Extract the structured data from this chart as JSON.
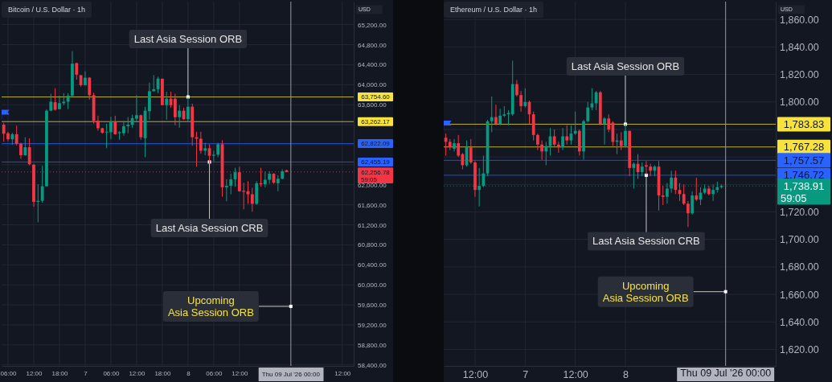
{
  "chart_data": [
    {
      "type": "candlestick",
      "title": "Bitcoin / U.S. Dollar · 1h",
      "subtitle": "USD",
      "grid": true,
      "x": [
        "2026-07-06T05:00",
        "2026-07-06T06:00",
        "2026-07-06T07:00",
        "2026-07-06T08:00",
        "2026-07-06T09:00",
        "2026-07-06T10:00",
        "2026-07-06T11:00",
        "2026-07-06T12:00",
        "2026-07-06T13:00",
        "2026-07-06T14:00",
        "2026-07-06T15:00",
        "2026-07-06T16:00",
        "2026-07-06T17:00",
        "2026-07-06T18:00",
        "2026-07-06T19:00",
        "2026-07-06T20:00",
        "2026-07-06T21:00",
        "2026-07-06T22:00",
        "2026-07-06T23:00",
        "2026-07-07T00:00",
        "2026-07-07T01:00",
        "2026-07-07T02:00",
        "2026-07-07T03:00",
        "2026-07-07T04:00",
        "2026-07-07T05:00",
        "2026-07-07T06:00",
        "2026-07-07T07:00",
        "2026-07-07T08:00",
        "2026-07-07T09:00",
        "2026-07-07T10:00",
        "2026-07-07T11:00",
        "2026-07-07T12:00",
        "2026-07-07T13:00",
        "2026-07-07T14:00",
        "2026-07-07T15:00",
        "2026-07-07T16:00",
        "2026-07-07T17:00",
        "2026-07-07T18:00",
        "2026-07-07T19:00",
        "2026-07-07T20:00",
        "2026-07-07T21:00",
        "2026-07-07T22:00",
        "2026-07-07T23:00",
        "2026-07-08T00:00",
        "2026-07-08T01:00",
        "2026-07-08T02:00",
        "2026-07-08T03:00",
        "2026-07-08T04:00",
        "2026-07-08T05:00",
        "2026-07-08T06:00",
        "2026-07-08T07:00",
        "2026-07-08T08:00",
        "2026-07-08T09:00",
        "2026-07-08T10:00",
        "2026-07-08T11:00",
        "2026-07-08T12:00",
        "2026-07-08T13:00",
        "2026-07-08T14:00",
        "2026-07-08T15:00",
        "2026-07-08T16:00",
        "2026-07-08T17:00",
        "2026-07-08T18:00",
        "2026-07-08T19:00",
        "2026-07-08T20:00",
        "2026-07-08T21:00",
        "2026-07-08T22:00",
        "2026-07-08T23:00"
      ],
      "ohlc": [
        [
          63200,
          63240,
          62860,
          63020
        ],
        [
          63030,
          63060,
          62870,
          62910
        ],
        [
          62910,
          63040,
          62800,
          63010
        ],
        [
          63010,
          63180,
          62790,
          62820
        ],
        [
          62820,
          62840,
          62520,
          62590
        ],
        [
          62590,
          62950,
          62580,
          62750
        ],
        [
          62750,
          62930,
          62390,
          62410
        ],
        [
          62400,
          62420,
          61560,
          61660
        ],
        [
          61660,
          62010,
          61250,
          61680
        ],
        [
          61680,
          62380,
          61640,
          61970
        ],
        [
          61970,
          63510,
          61960,
          63480
        ],
        [
          63480,
          63820,
          63470,
          63660
        ],
        [
          63650,
          63930,
          63480,
          63500
        ],
        [
          63510,
          63780,
          63510,
          63630
        ],
        [
          63630,
          63830,
          63590,
          63660
        ],
        [
          63660,
          63830,
          63510,
          63780
        ],
        [
          63780,
          64670,
          63770,
          64420
        ],
        [
          64430,
          64440,
          64100,
          64200
        ],
        [
          64190,
          64190,
          63960,
          63990
        ],
        [
          63990,
          64270,
          63980,
          64140
        ],
        [
          64140,
          64150,
          63700,
          63790
        ],
        [
          63790,
          63840,
          63220,
          63280
        ],
        [
          63280,
          63380,
          63080,
          63130
        ],
        [
          63130,
          63140,
          63020,
          63040
        ],
        [
          63050,
          63220,
          62730,
          63060
        ],
        [
          63050,
          63360,
          62910,
          63260
        ],
        [
          63260,
          63380,
          63000,
          63010
        ],
        [
          63030,
          63070,
          62900,
          63050
        ],
        [
          63030,
          63270,
          62980,
          63170
        ],
        [
          63170,
          63350,
          63030,
          63200
        ],
        [
          63200,
          63400,
          63140,
          63330
        ],
        [
          63320,
          63790,
          63270,
          63390
        ],
        [
          63390,
          63400,
          62900,
          62950
        ],
        [
          62930,
          63560,
          62550,
          63480
        ],
        [
          63470,
          64040,
          63300,
          63870
        ],
        [
          63870,
          64190,
          63860,
          63910
        ],
        [
          63910,
          64160,
          63830,
          64120
        ],
        [
          64120,
          64120,
          63590,
          63590
        ],
        [
          63590,
          63860,
          63300,
          63720
        ],
        [
          63720,
          63860,
          63540,
          63590
        ],
        [
          63720,
          63820,
          63190,
          63350
        ],
        [
          63350,
          63590,
          63140,
          63480
        ],
        [
          63480,
          63540,
          63300,
          63310
        ],
        [
          63310,
          63750,
          63250,
          63560
        ],
        [
          63560,
          63620,
          62780,
          62950
        ],
        [
          62950,
          63060,
          62360,
          62920
        ],
        [
          62920,
          63060,
          62620,
          62680
        ],
        [
          62680,
          62840,
          62590,
          62730
        ],
        [
          62730,
          62810,
          62420,
          62580
        ],
        [
          62580,
          62680,
          62470,
          62600
        ],
        [
          62600,
          62840,
          62550,
          62810
        ],
        [
          62810,
          62890,
          61760,
          61950
        ],
        [
          61950,
          62110,
          61670,
          61980
        ],
        [
          61980,
          62220,
          61810,
          62110
        ],
        [
          62110,
          62340,
          61960,
          62250
        ],
        [
          62250,
          62360,
          61860,
          61870
        ],
        [
          61880,
          62040,
          61510,
          61860
        ],
        [
          61870,
          62070,
          61620,
          61810
        ],
        [
          61810,
          61940,
          61460,
          61620
        ],
        [
          61620,
          62070,
          61600,
          62030
        ],
        [
          62030,
          62340,
          61960,
          62010
        ],
        [
          62010,
          62260,
          61950,
          62100
        ],
        [
          62100,
          62270,
          62020,
          62220
        ],
        [
          62220,
          62230,
          62020,
          62040
        ],
        [
          62030,
          62190,
          61870,
          62120
        ],
        [
          62120,
          62310,
          62110,
          62270
        ],
        [
          62290,
          62300,
          62250,
          62256.78
        ]
      ],
      "xlim": [
        "2026-07-06T04:30",
        "2026-07-09T14:40"
      ],
      "xticks": [
        {
          "value": "2026-07-06T06:00",
          "label": "06:00"
        },
        {
          "value": "2026-07-06T12:00",
          "label": "12:00"
        },
        {
          "value": "2026-07-06T18:00",
          "label": "18:00"
        },
        {
          "value": "2026-07-07T00:00",
          "label": "7"
        },
        {
          "value": "2026-07-07T06:00",
          "label": "06:00"
        },
        {
          "value": "2026-07-07T12:00",
          "label": "12:00"
        },
        {
          "value": "2026-07-07T18:00",
          "label": "18:00"
        },
        {
          "value": "2026-07-08T00:00",
          "label": "8"
        },
        {
          "value": "2026-07-08T06:00",
          "label": "06:00"
        },
        {
          "value": "2026-07-08T12:00",
          "label": "12:00"
        },
        {
          "value": "2026-07-09T12:00",
          "label": "12:00"
        }
      ],
      "ylim": [
        58380,
        65660
      ],
      "yticks": [
        {
          "value": 65200,
          "label": "65,200.00"
        },
        {
          "value": 64800,
          "label": "64,800.00"
        },
        {
          "value": 64400,
          "label": "64,400.00"
        },
        {
          "value": 64000,
          "label": "64,000.00"
        },
        {
          "value": 63600,
          "label": "63,600.00"
        },
        {
          "value": 63200,
          "label": null
        },
        {
          "value": 62800,
          "label": null
        },
        {
          "value": 62400,
          "label": null
        },
        {
          "value": 62000,
          "label": "62,000.00"
        },
        {
          "value": 61600,
          "label": "61,600.00"
        },
        {
          "value": 61200,
          "label": "61,200.00"
        },
        {
          "value": 60800,
          "label": "60,800.00"
        },
        {
          "value": 60400,
          "label": "60,400.00"
        },
        {
          "value": 60000,
          "label": "60,000.00"
        },
        {
          "value": 59600,
          "label": "59,600.00"
        },
        {
          "value": 59200,
          "label": "59,200.00"
        },
        {
          "value": 58800,
          "label": "58,800.00"
        },
        {
          "value": 58400,
          "label": "58,400.00"
        }
      ],
      "ref_lines": [
        {
          "axis": "y",
          "value": 63754.6,
          "label": "63,754.60",
          "color": "#f7e33b"
        },
        {
          "axis": "y",
          "value": 63262.17,
          "label": "63,262.17",
          "color": "#f7e33b"
        },
        {
          "axis": "y",
          "value": 62822.09,
          "label": "62,822.09",
          "color": "#2962ff"
        },
        {
          "axis": "y",
          "value": 62455.19,
          "label": "62,455.19",
          "color": "#2962ff"
        },
        {
          "axis": "y",
          "value": 62256.78,
          "label": "62,256.78\n59:05",
          "color": "#f23645",
          "line_style": "dotted"
        },
        {
          "axis": "x",
          "value": "2026-07-09T00:00",
          "label": "Thu 09 Jul '26   00:00",
          "color": "#9598a1"
        }
      ],
      "annotations": [
        {
          "text": "Last Asia Session ORB",
          "x": "2026-07-08T00:00",
          "y": 63754.6
        },
        {
          "text": "Last Asia Session CRB",
          "x": "2026-07-08T05:00",
          "y": 62455.19
        },
        {
          "text": "Upcoming\nAsia Session ORB",
          "x": "2026-07-09T00:00",
          "y": 59570
        }
      ]
    },
    {
      "type": "candlestick",
      "title": "Ethereum / U.S. Dollar · 1h",
      "subtitle": "USD",
      "grid": true,
      "x": [
        "2026-07-06T05:00",
        "2026-07-06T06:00",
        "2026-07-06T07:00",
        "2026-07-06T08:00",
        "2026-07-06T09:00",
        "2026-07-06T10:00",
        "2026-07-06T11:00",
        "2026-07-06T12:00",
        "2026-07-06T13:00",
        "2026-07-06T14:00",
        "2026-07-06T15:00",
        "2026-07-06T16:00",
        "2026-07-06T17:00",
        "2026-07-06T18:00",
        "2026-07-06T19:00",
        "2026-07-06T20:00",
        "2026-07-06T21:00",
        "2026-07-06T22:00",
        "2026-07-06T23:00",
        "2026-07-07T00:00",
        "2026-07-07T01:00",
        "2026-07-07T02:00",
        "2026-07-07T03:00",
        "2026-07-07T04:00",
        "2026-07-07T05:00",
        "2026-07-07T06:00",
        "2026-07-07T07:00",
        "2026-07-07T08:00",
        "2026-07-07T09:00",
        "2026-07-07T10:00",
        "2026-07-07T11:00",
        "2026-07-07T12:00",
        "2026-07-07T13:00",
        "2026-07-07T14:00",
        "2026-07-07T15:00",
        "2026-07-07T16:00",
        "2026-07-07T17:00",
        "2026-07-07T18:00",
        "2026-07-07T19:00",
        "2026-07-07T20:00",
        "2026-07-07T21:00",
        "2026-07-07T22:00",
        "2026-07-07T23:00",
        "2026-07-08T00:00",
        "2026-07-08T01:00",
        "2026-07-08T02:00",
        "2026-07-08T03:00",
        "2026-07-08T04:00",
        "2026-07-08T05:00",
        "2026-07-08T06:00",
        "2026-07-08T07:00",
        "2026-07-08T08:00",
        "2026-07-08T09:00",
        "2026-07-08T10:00",
        "2026-07-08T11:00",
        "2026-07-08T12:00",
        "2026-07-08T13:00",
        "2026-07-08T14:00",
        "2026-07-08T15:00",
        "2026-07-08T16:00",
        "2026-07-08T17:00",
        "2026-07-08T18:00",
        "2026-07-08T19:00",
        "2026-07-08T20:00",
        "2026-07-08T21:00",
        "2026-07-08T22:00",
        "2026-07-08T23:00"
      ],
      "ohlc": [
        [
          1774,
          1777,
          1761,
          1771
        ],
        [
          1771,
          1773,
          1765,
          1767
        ],
        [
          1766,
          1773,
          1764,
          1770
        ],
        [
          1770,
          1776,
          1760,
          1761
        ],
        [
          1762,
          1763,
          1751,
          1754
        ],
        [
          1754,
          1772,
          1753,
          1767
        ],
        [
          1767,
          1773,
          1755,
          1756
        ],
        [
          1756,
          1757,
          1731,
          1736
        ],
        [
          1736,
          1752,
          1724,
          1739
        ],
        [
          1739,
          1761,
          1738,
          1748
        ],
        [
          1748,
          1787,
          1746,
          1786
        ],
        [
          1786,
          1804,
          1778,
          1789
        ],
        [
          1789,
          1798,
          1783,
          1784
        ],
        [
          1784,
          1795,
          1783,
          1790
        ],
        [
          1790,
          1797,
          1789,
          1791
        ],
        [
          1791,
          1794,
          1783,
          1792
        ],
        [
          1791,
          1830,
          1790,
          1813
        ],
        [
          1813,
          1816,
          1804,
          1805
        ],
        [
          1805,
          1808,
          1793,
          1797
        ],
        [
          1797,
          1810,
          1796,
          1800
        ],
        [
          1800,
          1801,
          1784,
          1791
        ],
        [
          1791,
          1793,
          1772,
          1776
        ],
        [
          1776,
          1777,
          1765,
          1769
        ],
        [
          1769,
          1772,
          1758,
          1764
        ],
        [
          1764,
          1771,
          1754,
          1768
        ],
        [
          1768,
          1781,
          1761,
          1775
        ],
        [
          1775,
          1780,
          1767,
          1769
        ],
        [
          1769,
          1771,
          1763,
          1767
        ],
        [
          1767,
          1781,
          1765,
          1775
        ],
        [
          1775,
          1783,
          1769,
          1772
        ],
        [
          1772,
          1783,
          1769,
          1777
        ],
        [
          1777,
          1793,
          1776,
          1779
        ],
        [
          1779,
          1780,
          1761,
          1764
        ],
        [
          1764,
          1787,
          1758,
          1786
        ],
        [
          1786,
          1800,
          1785,
          1796
        ],
        [
          1796,
          1810,
          1794,
          1799
        ],
        [
          1799,
          1808,
          1794,
          1807
        ],
        [
          1807,
          1808,
          1783,
          1784
        ],
        [
          1784,
          1789,
          1769,
          1788
        ],
        [
          1788,
          1791,
          1778,
          1780
        ],
        [
          1785,
          1786,
          1768,
          1771
        ],
        [
          1771,
          1777,
          1762,
          1772
        ],
        [
          1772,
          1778,
          1765,
          1768
        ],
        [
          1768,
          1784,
          1767,
          1779
        ],
        [
          1779,
          1779,
          1746,
          1752
        ],
        [
          1752,
          1756,
          1737,
          1755
        ],
        [
          1755,
          1762,
          1744,
          1749
        ],
        [
          1749,
          1756,
          1746,
          1753
        ],
        [
          1754,
          1757,
          1747,
          1753
        ],
        [
          1753,
          1755,
          1746,
          1750
        ],
        [
          1750,
          1754,
          1746,
          1753
        ],
        [
          1753,
          1757,
          1721,
          1732
        ],
        [
          1732,
          1739,
          1725,
          1731
        ],
        [
          1731,
          1741,
          1726,
          1737
        ],
        [
          1737,
          1750,
          1734,
          1745
        ],
        [
          1745,
          1750,
          1733,
          1736
        ],
        [
          1736,
          1741,
          1728,
          1733
        ],
        [
          1733,
          1740,
          1725,
          1726
        ],
        [
          1726,
          1728,
          1709,
          1719
        ],
        [
          1719,
          1735,
          1718,
          1732
        ],
        [
          1732,
          1745,
          1728,
          1729
        ],
        [
          1729,
          1738,
          1725,
          1734
        ],
        [
          1734,
          1740,
          1733,
          1737
        ],
        [
          1737,
          1739,
          1732,
          1733
        ],
        [
          1733,
          1740,
          1728,
          1736
        ],
        [
          1736,
          1742,
          1734,
          1738
        ],
        [
          1738,
          1740,
          1737,
          1738.91
        ]
      ],
      "xlim": [
        "2026-07-06T04:30",
        "2026-07-09T12:00"
      ],
      "xticks": [
        {
          "value": "2026-07-06T12:00",
          "label": "12:00"
        },
        {
          "value": "2026-07-07T00:00",
          "label": "7"
        },
        {
          "value": "2026-07-07T12:00",
          "label": "12:00"
        },
        {
          "value": "2026-07-08T00:00",
          "label": "8"
        }
      ],
      "ylim": [
        1608,
        1873
      ],
      "yticks": [
        {
          "value": 1860,
          "label": "1,860.00"
        },
        {
          "value": 1840,
          "label": "1,840.00"
        },
        {
          "value": 1820,
          "label": "1,820.00"
        },
        {
          "value": 1800,
          "label": "1,800.00"
        },
        {
          "value": 1780,
          "label": null
        },
        {
          "value": 1760,
          "label": null
        },
        {
          "value": 1740,
          "label": null
        },
        {
          "value": 1720,
          "label": "1,720.00"
        },
        {
          "value": 1700,
          "label": "1,700.00"
        },
        {
          "value": 1680,
          "label": "1,680.00"
        },
        {
          "value": 1660,
          "label": "1,660.00"
        },
        {
          "value": 1640,
          "label": "1,640.00"
        },
        {
          "value": 1620,
          "label": "1,620.00"
        }
      ],
      "ref_lines": [
        {
          "axis": "y",
          "value": 1783.83,
          "label": "1,783.83",
          "color": "#f7e33b"
        },
        {
          "axis": "y",
          "value": 1767.28,
          "label": "1,767.28",
          "color": "#f7e33b"
        },
        {
          "axis": "y",
          "value": 1757.57,
          "label": "1,757.57",
          "color": "#2962ff"
        },
        {
          "axis": "y",
          "value": 1746.72,
          "label": "1,746.72",
          "color": "#2962ff"
        },
        {
          "axis": "y",
          "value": 1738.91,
          "label": "1,738.91\n59:05",
          "color": "#089981",
          "line_style": "dotted"
        },
        {
          "axis": "x",
          "value": "2026-07-09T00:00",
          "label": "Thu 09 Jul '26   00:00",
          "color": "#9598a1"
        }
      ],
      "annotations": [
        {
          "text": "Last Asia Session ORB",
          "x": "2026-07-08T00:00",
          "y": 1783.83
        },
        {
          "text": "Last Asia Session CRB",
          "x": "2026-07-08T05:00",
          "y": 1746.72
        },
        {
          "text": "Upcoming\nAsia Session ORB",
          "x": "2026-07-09T00:00",
          "y": 1662
        }
      ]
    }
  ]
}
